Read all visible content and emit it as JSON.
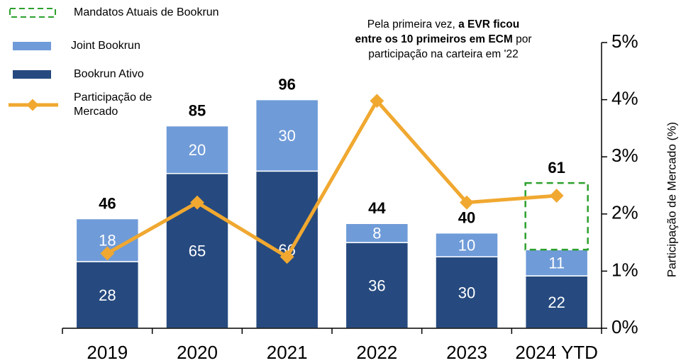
{
  "chart_data": {
    "type": "bar",
    "categories": [
      "2019",
      "2020",
      "2021",
      "2022",
      "2023",
      "2024 YTD"
    ],
    "series": [
      {
        "name": "Bookrun Ativo",
        "color": "#264a7f",
        "values": [
          28,
          65,
          66,
          36,
          30,
          22
        ]
      },
      {
        "name": "Joint Bookrun",
        "color": "#6f9bd8",
        "values": [
          18,
          20,
          30,
          8,
          10,
          11
        ]
      },
      {
        "name": "Mandatos Atuais de Bookrun",
        "color": "#2ca02c",
        "style": "dashed",
        "values": [
          null,
          null,
          null,
          null,
          null,
          28
        ]
      },
      {
        "name": "Participação de Mercado",
        "color": "#f0a830",
        "type": "line",
        "axis": "y2",
        "values": [
          1.31,
          2.2,
          1.25,
          3.98,
          2.2,
          2.32
        ]
      }
    ],
    "totals": [
      46,
      85,
      96,
      44,
      40,
      61
    ],
    "ylim": [
      0,
      120
    ],
    "y2lim": [
      0,
      5
    ],
    "y2ticks": [
      {
        "value": 0,
        "label": "0%"
      },
      {
        "value": 1,
        "label": "1%"
      },
      {
        "value": 2,
        "label": "2%"
      },
      {
        "value": 3,
        "label": "3%"
      },
      {
        "value": 4,
        "label": "4%"
      },
      {
        "value": 5,
        "label": "5%"
      }
    ],
    "y2label": "Participação de Mercado (%)",
    "annotation": [
      {
        "text": "Pela primeira vez, ",
        "bold": false
      },
      {
        "text": "a EVR ficou entre os 10 primeiros em ECM",
        "bold": true
      },
      {
        "text": " por participação na carteira em '22",
        "bold": false
      }
    ],
    "legend": "top-left"
  }
}
